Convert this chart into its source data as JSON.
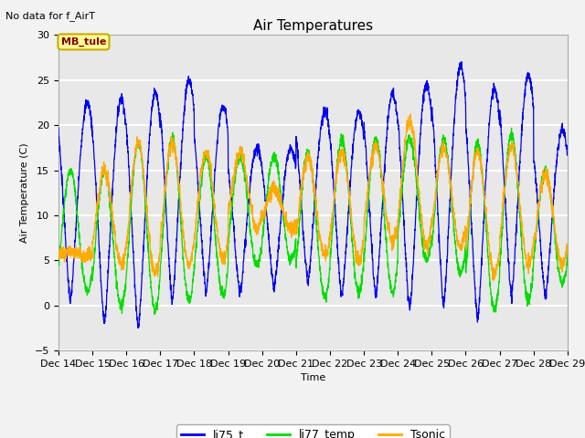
{
  "title": "Air Temperatures",
  "subtitle": "No data for f_AirT",
  "ylabel": "Air Temperature (C)",
  "xlabel": "Time",
  "ylim": [
    -5,
    30
  ],
  "yticks": [
    -5,
    0,
    5,
    10,
    15,
    20,
    25,
    30
  ],
  "legend_labels": [
    "li75_t",
    "li77_temp",
    "Tsonic"
  ],
  "legend_colors": [
    "#0000ee",
    "#00dd00",
    "#ffaa00"
  ],
  "plot_bg": "#e8e8e8",
  "fig_bg": "#f2f2f2",
  "grid_color": "#ffffff",
  "annotation_text": "MB_tule",
  "annotation_color": "#880000",
  "annotation_bg": "#ffff99",
  "annotation_border": "#ccaa00",
  "tick_labels": [
    "Dec 14",
    "Dec 15",
    "Dec 16",
    "Dec 17",
    "Dec 18",
    "Dec 19",
    "Dec 20",
    "Dec 21",
    "Dec 22",
    "Dec 23",
    "Dec 24",
    "Dec 25",
    "Dec 26",
    "Dec 27",
    "Dec 28",
    "Dec 29"
  ],
  "tick_positions": [
    0,
    1,
    2,
    3,
    4,
    5,
    6,
    7,
    8,
    9,
    10,
    11,
    12,
    13,
    14,
    15
  ]
}
